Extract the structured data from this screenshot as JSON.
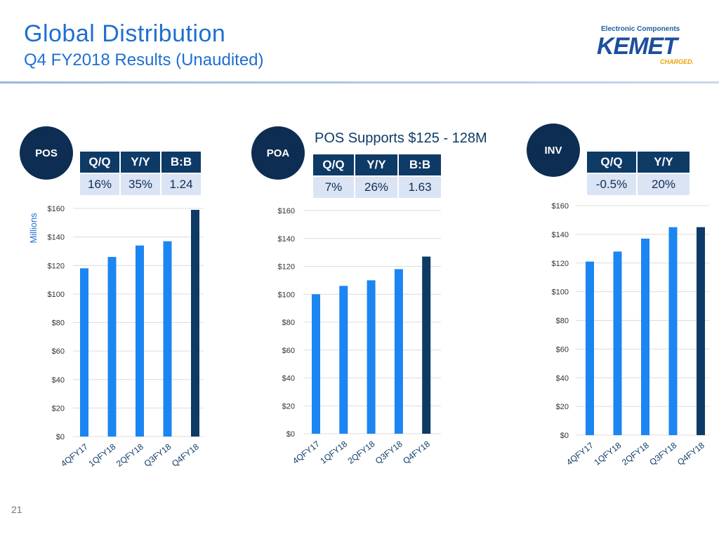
{
  "header": {
    "title": "Global Distribution",
    "subtitle": "Q4 FY2018 Results (Unaudited)"
  },
  "logo": {
    "top": "Electronic Components",
    "main": "KEMET",
    "tag": "CHARGED."
  },
  "page_number": "21",
  "headline": "POS Supports $125 - 128M",
  "colors": {
    "bar": "#1b86f2",
    "bar_highlight": "#0e3a66",
    "circle": "#0e2d52",
    "title": "#1f6fd1"
  },
  "panels": [
    {
      "badge": "POS",
      "stats": [
        {
          "label": "Q/Q",
          "value": "16%"
        },
        {
          "label": "Y/Y",
          "value": "35%"
        },
        {
          "label": "B:B",
          "value": "1.24"
        }
      ]
    },
    {
      "badge": "POA",
      "stats": [
        {
          "label": "Q/Q",
          "value": "7%"
        },
        {
          "label": "Y/Y",
          "value": "26%"
        },
        {
          "label": "B:B",
          "value": "1.63"
        }
      ]
    },
    {
      "badge": "INV",
      "stats": [
        {
          "label": "Q/Q",
          "value": "-0.5%"
        },
        {
          "label": "Y/Y",
          "value": "20%"
        }
      ]
    }
  ],
  "chart_data": [
    {
      "type": "bar",
      "title": "POS",
      "ylabel": "Millions",
      "categories": [
        "4QFY17",
        "1QFY18",
        "2QFY18",
        "Q3FY18",
        "Q4FY18"
      ],
      "values": [
        118,
        126,
        134,
        137,
        159
      ],
      "ylim": [
        0,
        160
      ],
      "yticks": [
        "$0",
        "$20",
        "$40",
        "$60",
        "$80",
        "$100",
        "$120",
        "$140",
        "$160"
      ],
      "grid": true
    },
    {
      "type": "bar",
      "title": "POA",
      "ylabel": "",
      "categories": [
        "4QFY17",
        "1QFY18",
        "2QFY18",
        "Q3FY18",
        "Q4FY18"
      ],
      "values": [
        100,
        106,
        110,
        118,
        127
      ],
      "ylim": [
        0,
        160
      ],
      "yticks": [
        "$0",
        "$20",
        "$40",
        "$60",
        "$80",
        "$100",
        "$120",
        "$140",
        "$160"
      ],
      "grid": true
    },
    {
      "type": "bar",
      "title": "INV",
      "ylabel": "",
      "categories": [
        "4QFY17",
        "1QFY18",
        "2QFY18",
        "Q3FY18",
        "Q4FY18"
      ],
      "values": [
        121,
        128,
        137,
        145,
        145
      ],
      "ylim": [
        0,
        160
      ],
      "yticks": [
        "$0",
        "$20",
        "$40",
        "$60",
        "$80",
        "$100",
        "$120",
        "$140",
        "$160"
      ],
      "grid": true
    }
  ]
}
